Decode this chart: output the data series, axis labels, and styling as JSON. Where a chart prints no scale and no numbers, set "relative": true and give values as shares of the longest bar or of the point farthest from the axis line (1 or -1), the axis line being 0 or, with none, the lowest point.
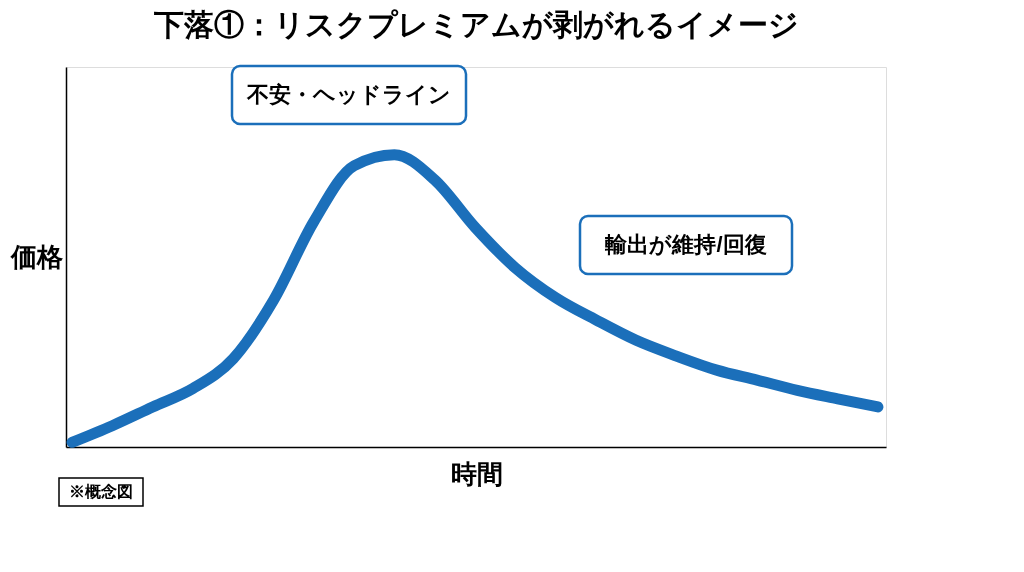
{
  "chart_data": {
    "type": "line",
    "title": "下落①：リスクプレミアムが剥がれるイメージ",
    "xlabel": "時間",
    "ylabel": "価格",
    "relative": true,
    "grid": false,
    "line_style": "solid",
    "categories": [
      null,
      null,
      null,
      null,
      null,
      null,
      null,
      null,
      null,
      null,
      null,
      null,
      null,
      null,
      null,
      null,
      null,
      null,
      null,
      null,
      null
    ],
    "series": [
      {
        "color": "#1b6fba",
        "values": [
          0.016,
          0.073,
          0.137,
          0.2,
          0.302,
          0.502,
          0.771,
          0.962,
          1.0,
          0.914,
          0.752,
          0.613,
          0.511,
          0.435,
          0.365,
          0.311,
          0.263,
          0.229,
          0.194,
          0.165,
          0.137
        ]
      }
    ],
    "annotations": [
      "不安・ヘッドライン",
      "輸出が維持/回復",
      "※概念図"
    ]
  }
}
